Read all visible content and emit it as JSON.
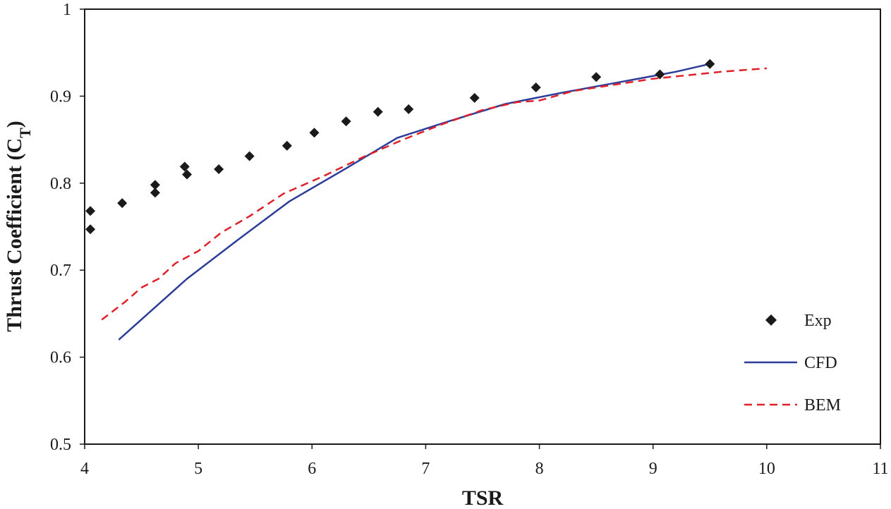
{
  "chart_data": {
    "type": "scatter",
    "title": "",
    "xlabel": "TSR",
    "ylabel_main": "Thrust Coefficient (C",
    "ylabel_sub": "T",
    "ylabel_close": ")",
    "xlim": [
      4,
      11
    ],
    "ylim": [
      0.5,
      1
    ],
    "xticks": [
      4,
      5,
      6,
      7,
      8,
      9,
      10,
      11
    ],
    "yticks": [
      0.5,
      0.6,
      0.7,
      0.8,
      0.9,
      1
    ],
    "xtick_labels": [
      "4",
      "5",
      "6",
      "7",
      "8",
      "9",
      "10",
      "11"
    ],
    "ytick_labels": [
      "0.5",
      "0.6",
      "0.7",
      "0.8",
      "0.9",
      "1"
    ],
    "grid": false,
    "legend_position": "bottom-right",
    "series": [
      {
        "name": "Exp",
        "kind": "markers",
        "marker": "diamond",
        "color": "#1a1a1a",
        "x": [
          4.05,
          4.05,
          4.33,
          4.62,
          4.62,
          4.88,
          4.9,
          5.18,
          5.45,
          5.78,
          6.02,
          6.3,
          6.58,
          6.85,
          7.43,
          7.97,
          8.5,
          9.06,
          9.5
        ],
        "y": [
          0.747,
          0.768,
          0.777,
          0.789,
          0.798,
          0.819,
          0.81,
          0.816,
          0.831,
          0.843,
          0.858,
          0.871,
          0.882,
          0.885,
          0.898,
          0.91,
          0.922,
          0.925,
          0.937
        ]
      },
      {
        "name": "CFD",
        "kind": "line",
        "dash": "solid",
        "color": "#2b3d99",
        "x": [
          4.3,
          4.9,
          5.35,
          5.8,
          6.3,
          6.75,
          7.2,
          7.7,
          8.2,
          8.7,
          9.2,
          9.5
        ],
        "y": [
          0.62,
          0.69,
          0.735,
          0.779,
          0.817,
          0.852,
          0.871,
          0.891,
          0.904,
          0.916,
          0.928,
          0.937
        ]
      },
      {
        "name": "BEM",
        "kind": "line",
        "dash": "dashed",
        "color": "#e0202a",
        "x": [
          4.15,
          4.35,
          4.5,
          4.65,
          4.8,
          5.0,
          5.2,
          5.45,
          5.75,
          6.1,
          6.45,
          6.8,
          7.15,
          7.5,
          7.8,
          8.0,
          8.3,
          8.6,
          9.0,
          9.3,
          9.6,
          10.0
        ],
        "y": [
          0.643,
          0.663,
          0.68,
          0.69,
          0.708,
          0.722,
          0.743,
          0.762,
          0.788,
          0.808,
          0.83,
          0.85,
          0.868,
          0.884,
          0.893,
          0.895,
          0.906,
          0.912,
          0.92,
          0.924,
          0.928,
          0.932
        ]
      }
    ]
  }
}
